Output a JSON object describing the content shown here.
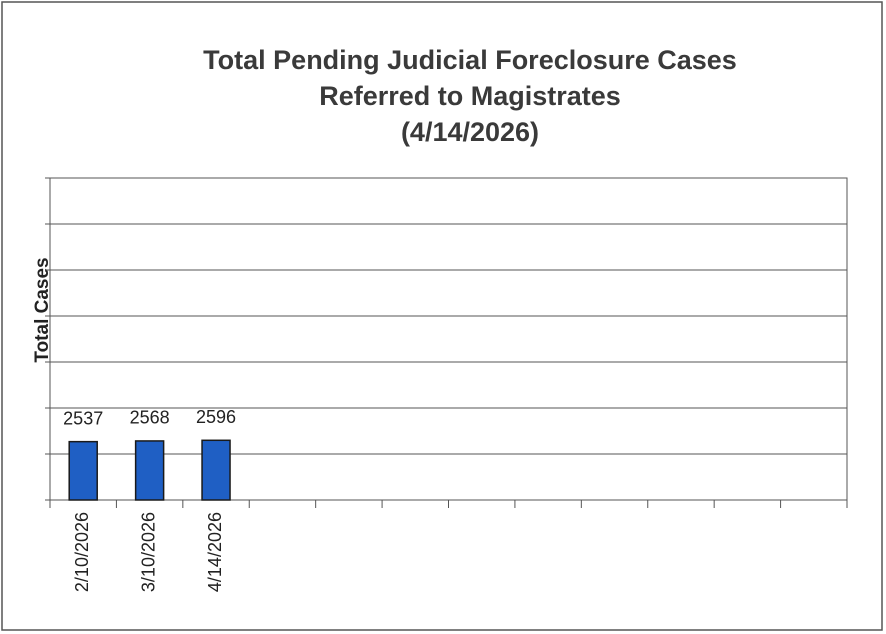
{
  "chart_data": {
    "type": "bar",
    "title": [
      "Total Pending Judicial Foreclosure Cases",
      "Referred to Magistrates",
      "(4/14/2026)"
    ],
    "y_label": "Total Cases",
    "categories": [
      "2/10/2026",
      "3/10/2026",
      "4/14/2026",
      null,
      null,
      null,
      null,
      null,
      null,
      null,
      null,
      null
    ],
    "values": [
      2537,
      2568,
      2596,
      null,
      null,
      null,
      null,
      null,
      null,
      null,
      null,
      null
    ],
    "color": "#1f5fc4",
    "ylim": [
      0,
      14000
    ],
    "yticks": [
      0,
      2000,
      4000,
      6000,
      8000,
      10000,
      12000,
      14000
    ],
    "ytick_labels": false,
    "grid": true
  }
}
